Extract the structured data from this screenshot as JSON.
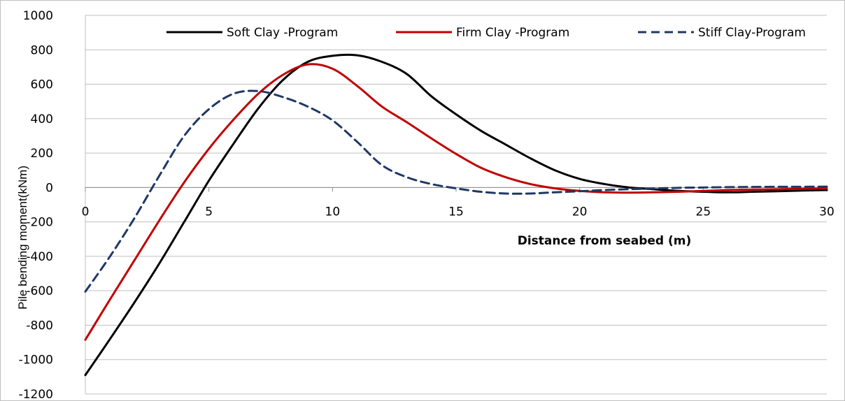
{
  "chart_data": {
    "type": "line",
    "title": "",
    "xlabel": "Distance from seabed (m)",
    "ylabel": "Pile bending moment(kNm)",
    "xlim": [
      0,
      30
    ],
    "ylim": [
      -1200,
      1000
    ],
    "x_ticks": [
      0,
      5,
      10,
      15,
      20,
      25,
      30
    ],
    "y_ticks": [
      -1200,
      -1000,
      -800,
      -600,
      -400,
      -200,
      0,
      200,
      400,
      600,
      800,
      1000
    ],
    "grid": "horizontal",
    "legend_position": "top",
    "series": [
      {
        "name": "Soft Clay -Program",
        "color": "#000000",
        "dash": "solid",
        "points": [
          [
            0,
            -1090
          ],
          [
            1,
            -880
          ],
          [
            2,
            -665
          ],
          [
            3,
            -440
          ],
          [
            4,
            -200
          ],
          [
            5,
            40
          ],
          [
            6,
            255
          ],
          [
            7,
            460
          ],
          [
            8,
            625
          ],
          [
            9,
            730
          ],
          [
            10,
            765
          ],
          [
            11,
            768
          ],
          [
            12,
            730
          ],
          [
            13,
            660
          ],
          [
            14,
            530
          ],
          [
            15,
            425
          ],
          [
            16,
            330
          ],
          [
            17,
            250
          ],
          [
            18,
            170
          ],
          [
            19,
            100
          ],
          [
            20,
            50
          ],
          [
            21,
            20
          ],
          [
            22,
            0
          ],
          [
            23,
            -10
          ],
          [
            24,
            -20
          ],
          [
            25,
            -25
          ],
          [
            26,
            -28
          ],
          [
            27,
            -25
          ],
          [
            28,
            -22
          ],
          [
            29,
            -18
          ],
          [
            30,
            -15
          ]
        ]
      },
      {
        "name": "Firm Clay -Program",
        "color": "#c00000",
        "dash": "solid",
        "points": [
          [
            0,
            -885
          ],
          [
            1,
            -650
          ],
          [
            2,
            -420
          ],
          [
            3,
            -190
          ],
          [
            4,
            30
          ],
          [
            5,
            225
          ],
          [
            6,
            395
          ],
          [
            7,
            545
          ],
          [
            8,
            655
          ],
          [
            9,
            715
          ],
          [
            10,
            690
          ],
          [
            11,
            590
          ],
          [
            12,
            470
          ],
          [
            13,
            380
          ],
          [
            14,
            285
          ],
          [
            15,
            195
          ],
          [
            16,
            115
          ],
          [
            17,
            60
          ],
          [
            18,
            20
          ],
          [
            19,
            -5
          ],
          [
            20,
            -20
          ],
          [
            21,
            -28
          ],
          [
            22,
            -30
          ],
          [
            23,
            -28
          ],
          [
            24,
            -25
          ],
          [
            25,
            -20
          ],
          [
            26,
            -15
          ],
          [
            27,
            -12
          ],
          [
            28,
            -10
          ],
          [
            29,
            -8
          ],
          [
            30,
            -5
          ]
        ]
      },
      {
        "name": "Stiff Clay-Program",
        "color": "#1f3864",
        "dash": "dashed",
        "points": [
          [
            0,
            -605
          ],
          [
            1,
            -400
          ],
          [
            2,
            -175
          ],
          [
            3,
            70
          ],
          [
            4,
            300
          ],
          [
            5,
            455
          ],
          [
            6,
            545
          ],
          [
            7,
            560
          ],
          [
            8,
            525
          ],
          [
            9,
            470
          ],
          [
            10,
            390
          ],
          [
            11,
            265
          ],
          [
            12,
            130
          ],
          [
            13,
            60
          ],
          [
            14,
            20
          ],
          [
            15,
            -5
          ],
          [
            16,
            -25
          ],
          [
            17,
            -35
          ],
          [
            18,
            -35
          ],
          [
            19,
            -28
          ],
          [
            20,
            -22
          ],
          [
            21,
            -15
          ],
          [
            22,
            -10
          ],
          [
            23,
            -6
          ],
          [
            24,
            -2
          ],
          [
            25,
            0
          ],
          [
            26,
            2
          ],
          [
            27,
            3
          ],
          [
            28,
            4
          ],
          [
            29,
            4
          ],
          [
            30,
            5
          ]
        ]
      }
    ]
  }
}
